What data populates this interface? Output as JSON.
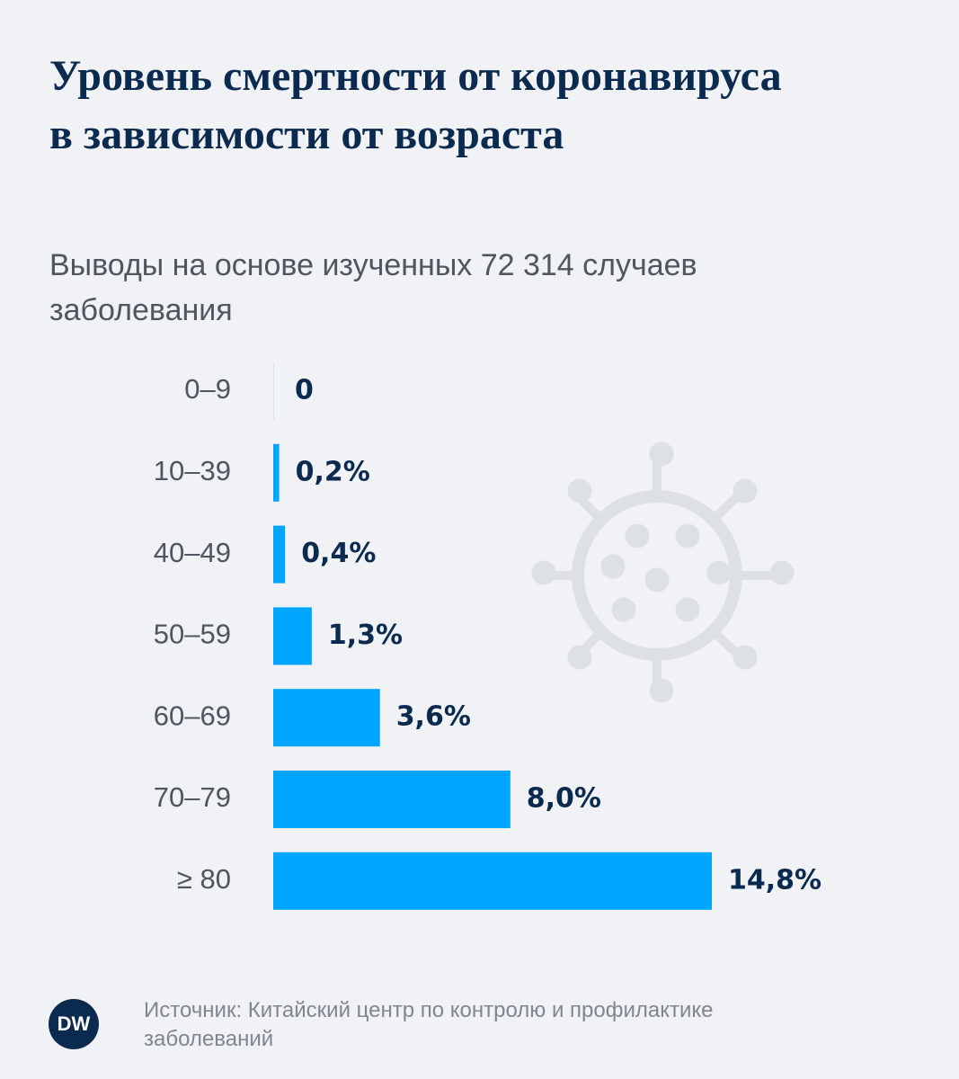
{
  "chart_data": {
    "type": "bar",
    "orientation": "horizontal",
    "title": "Уровень смертности от коронавируса в зависимости от возраста",
    "subtitle": "Выводы на основе изученных 72 314 случаев заболевания",
    "categories": [
      "0–9",
      "10–39",
      "40–49",
      "50–59",
      "60–69",
      "70–79",
      "≥ 80"
    ],
    "values": [
      0,
      0.2,
      0.4,
      1.3,
      3.6,
      8.0,
      14.8
    ],
    "value_labels": [
      "0",
      "0,2%",
      "0,4%",
      "1,3%",
      "3,6%",
      "8,0%",
      "14,8%"
    ],
    "color": "#00a5ff",
    "source": "Источник: Китайский центр по контролю и профилактике заболеваний",
    "logo": "DW"
  }
}
